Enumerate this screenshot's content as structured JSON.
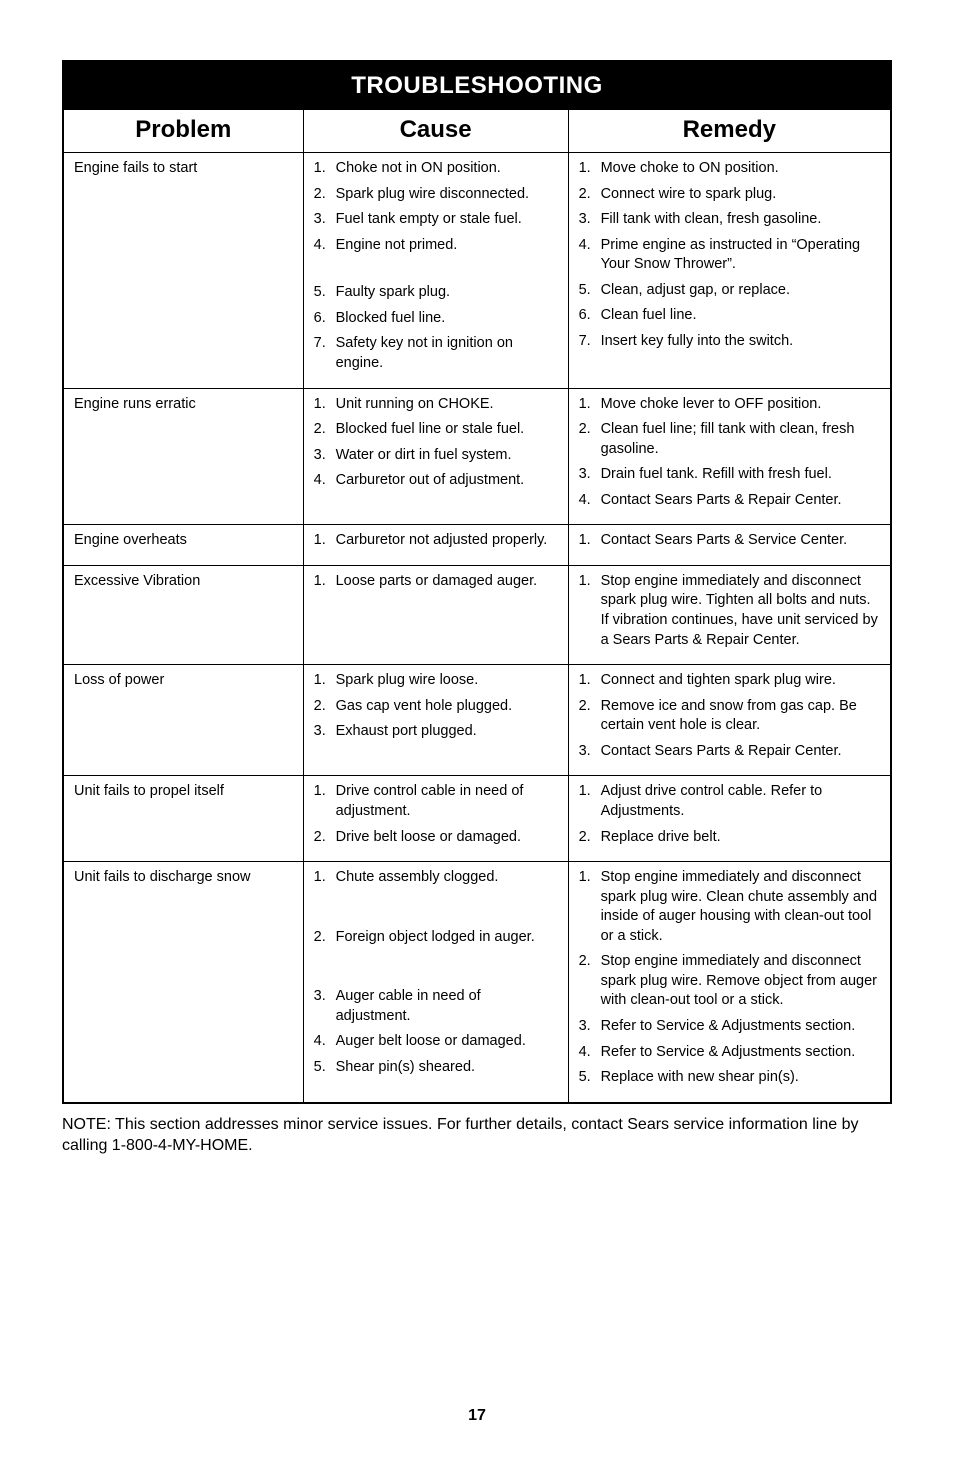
{
  "title": "TROUBLESHOOTING",
  "headers": {
    "problem": "Problem",
    "cause": "Cause",
    "remedy": "Remedy"
  },
  "rows": [
    {
      "problem": "Engine fails to start",
      "causes": [
        "Choke not in ON position.",
        "Spark plug wire disconnected.",
        "Fuel tank empty or stale fuel.",
        "Engine not primed.",
        "Faulty spark plug.",
        "Blocked fuel line.",
        "Safety key not in ignition on engine."
      ],
      "remedies": [
        "Move choke to ON position.",
        "Connect wire to spark plug.",
        "Fill tank with clean, fresh gasoline.",
        "Prime engine as instructed in “Operating Your Snow Thrower”.",
        "Clean, adjust gap, or replace.",
        "Clean fuel line.",
        "Insert key fully into the switch."
      ],
      "cause_gap_after": 3
    },
    {
      "problem": "Engine runs erratic",
      "causes": [
        "Unit running on CHOKE.",
        "Blocked fuel line or stale fuel.",
        "Water or dirt in fuel system.",
        "Carburetor out of adjustment."
      ],
      "remedies": [
        "Move choke lever to OFF position.",
        "Clean fuel line; fill tank with clean, fresh gasoline.",
        "Drain fuel tank. Refill with fresh fuel.",
        "Contact Sears Parts & Repair Center."
      ]
    },
    {
      "problem": "Engine overheats",
      "causes": [
        "Carburetor not adjusted properly."
      ],
      "remedies": [
        "Contact Sears Parts & Service Center."
      ]
    },
    {
      "problem": "Excessive Vibration",
      "causes": [
        "Loose parts or damaged auger."
      ],
      "remedies": [
        "Stop engine immediately and disconnect spark plug wire. Tighten all bolts and nuts. If vibration continues, have unit serviced by a Sears Parts & Repair Center."
      ]
    },
    {
      "problem": "Loss of power",
      "causes": [
        "Spark plug wire loose.",
        "Gas cap vent hole plugged.",
        "Exhaust port plugged."
      ],
      "remedies": [
        "Connect and tighten spark plug wire.",
        "Remove ice and snow from gas cap. Be certain vent hole is clear.",
        "Contact Sears Parts & Repair Center."
      ]
    },
    {
      "problem": "Unit fails to propel itself",
      "causes": [
        "Drive control cable in need of adjustment.",
        "Drive belt loose or damaged."
      ],
      "remedies": [
        "Adjust drive control cable. Refer to Adjustments.",
        "Replace drive belt."
      ]
    },
    {
      "problem": "Unit fails to discharge snow",
      "causes": [
        "Chute assembly clogged.",
        "Foreign object lodged in auger.",
        "Auger cable in need of adjustment.",
        "Auger belt loose or damaged.",
        "Shear pin(s) sheared."
      ],
      "remedies": [
        "Stop engine immediately and disconnect spark plug wire. Clean chute assembly and inside of auger housing with clean-out tool or a stick.",
        "Stop engine immediately and disconnect spark plug wire. Remove object from auger with clean-out tool or a stick.",
        "Refer to Service & Adjustments section.",
        "Refer to Service & Adjustments section.",
        "Replace with new shear pin(s)."
      ],
      "cause_gap_after_multi": [
        0,
        1
      ]
    }
  ],
  "note": "NOTE: This section addresses minor service issues. For further details, contact Sears service information line by calling 1-800-4-MY-HOME.",
  "page_number": "17",
  "colors": {
    "bg": "#ffffff",
    "text": "#000000",
    "border": "#000000",
    "title_bg": "#000000",
    "title_fg": "#ffffff"
  }
}
